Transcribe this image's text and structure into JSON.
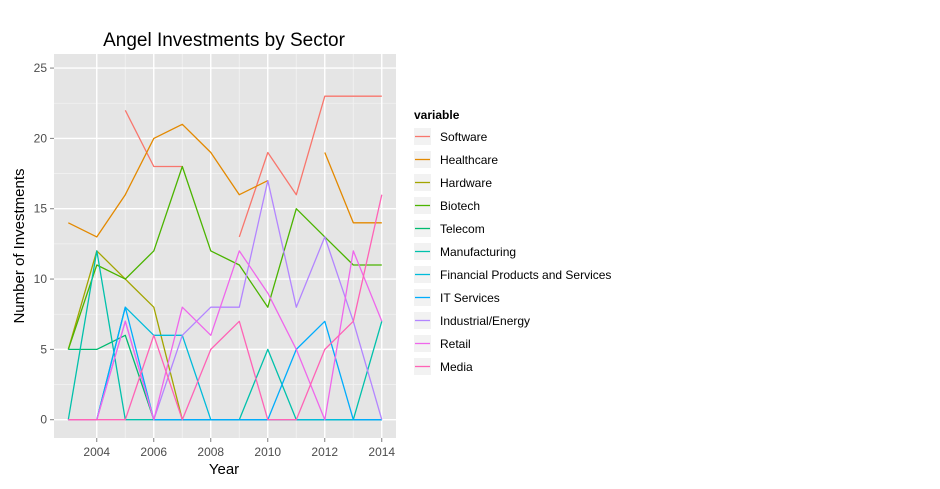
{
  "chart_data": {
    "type": "line",
    "title": "Angel Investments by Sector",
    "xlabel": "Year",
    "ylabel": "Number of Investments",
    "xlim": [
      2002.5,
      2014.5
    ],
    "ylim": [
      -1.3,
      26
    ],
    "x_ticks": [
      2004,
      2006,
      2008,
      2010,
      2012,
      2014
    ],
    "y_ticks": [
      0,
      5,
      10,
      15,
      20,
      25
    ],
    "grid": true,
    "legend_title": "variable",
    "legend_position": "right",
    "x": [
      2003,
      2004,
      2005,
      2006,
      2007,
      2008,
      2009,
      2010,
      2011,
      2012,
      2013,
      2014
    ],
    "series": [
      {
        "name": "Software",
        "color": "#F8766D",
        "values": [
          null,
          null,
          22,
          18,
          18,
          null,
          13,
          19,
          16,
          23,
          23,
          23
        ]
      },
      {
        "name": "Healthcare",
        "color": "#E38900",
        "values": [
          14,
          13,
          16,
          20,
          21,
          19,
          16,
          17,
          null,
          19,
          14,
          14
        ]
      },
      {
        "name": "Hardware",
        "color": "#A3A500",
        "values": [
          5,
          12,
          10,
          8,
          0,
          null,
          null,
          null,
          null,
          null,
          null,
          null
        ]
      },
      {
        "name": "Biotech",
        "color": "#4BB400",
        "values": [
          5,
          11,
          10,
          12,
          18,
          12,
          11,
          8,
          15,
          13,
          11,
          11
        ]
      },
      {
        "name": "Telecom",
        "color": "#00BA70",
        "values": [
          5,
          5,
          6,
          0,
          0,
          0,
          0,
          0,
          0,
          0,
          0,
          0
        ]
      },
      {
        "name": "Manufacturing",
        "color": "#00C1AB",
        "values": [
          0,
          12,
          0,
          0,
          0,
          0,
          0,
          5,
          0,
          0,
          0,
          7
        ]
      },
      {
        "name": "Financial Products and Services",
        "color": "#00BBDA",
        "values": [
          0,
          0,
          8,
          6,
          6,
          0,
          0,
          0,
          0,
          0,
          0,
          0
        ]
      },
      {
        "name": "IT Services",
        "color": "#00ACFC",
        "values": [
          0,
          0,
          8,
          0,
          0,
          0,
          0,
          0,
          5,
          7,
          0,
          0
        ]
      },
      {
        "name": "Industrial/Energy",
        "color": "#B385FF",
        "values": [
          0,
          0,
          7,
          0,
          6,
          8,
          8,
          17,
          8,
          13,
          7,
          0
        ]
      },
      {
        "name": "Retail",
        "color": "#EF67EB",
        "values": [
          0,
          0,
          7,
          0,
          8,
          6,
          12,
          9,
          5,
          0,
          12,
          7
        ]
      },
      {
        "name": "Media",
        "color": "#FF63B6",
        "values": [
          0,
          0,
          0,
          6,
          0,
          5,
          7,
          0,
          0,
          5,
          7,
          16
        ]
      }
    ]
  }
}
